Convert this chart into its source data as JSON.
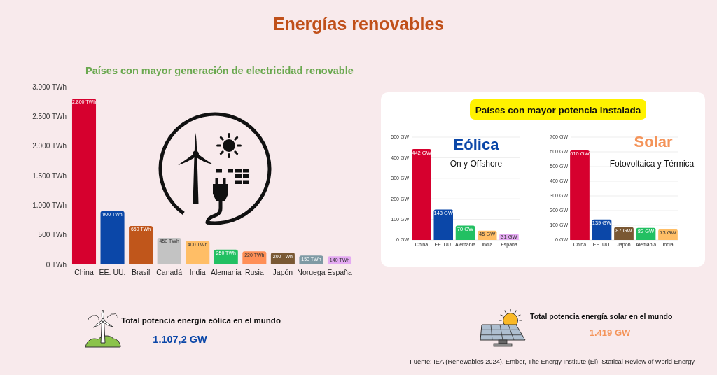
{
  "chart_data": [
    {
      "type": "other",
      "title": "Energías renovables",
      "annotations": [
        "Fuente: IEA (Renewables 2024), Ember, The Energy Institute (Ei), Statical Review of World Energy"
      ]
    },
    {
      "type": "bar",
      "title": "Países con mayor generación de electricidad renovable",
      "categories": [
        "China",
        "EE. UU.",
        "Brasil",
        "Canadá",
        "India",
        "Alemania",
        "Rusia",
        "Japón",
        "Noruega",
        "España"
      ],
      "values": [
        2800,
        900,
        650,
        450,
        400,
        250,
        220,
        200,
        150,
        140
      ],
      "colors": [
        "#d6002e",
        "#0b47a8",
        "#c0561b",
        "#c3c3c3",
        "#ffbe66",
        "#22c062",
        "#ff8f57",
        "#7a5833",
        "#7f9aa4",
        "#e4aaf2"
      ],
      "value_labels": [
        "2.800 TWh",
        "900 TWh",
        "650 TWh",
        "450 TWh",
        "400 TWh",
        "250 TWh",
        "220 TWh",
        "200 TWh",
        "150 TWh",
        "140 TWh"
      ],
      "ylim": [
        0,
        3000
      ],
      "yticks": [
        {
          "value": 0,
          "label": "0 TWh"
        },
        {
          "value": 500,
          "label": "500 TWh"
        },
        {
          "value": 1000,
          "label": "1.000 TWh"
        },
        {
          "value": 1500,
          "label": "1.500 TWh"
        },
        {
          "value": 2000,
          "label": "2.000 TWh"
        },
        {
          "value": 2500,
          "label": "2.500 TWh"
        },
        {
          "value": 3000,
          "label": "3.000 TWh"
        }
      ]
    },
    {
      "type": "other",
      "title": "Países con mayor potencia instalada"
    },
    {
      "type": "bar",
      "title": "Eólica",
      "subtitle": "On y Offshore",
      "categories": [
        "China",
        "EE. UU.",
        "Alemania",
        "India",
        "España"
      ],
      "values": [
        442,
        148,
        70,
        45,
        31
      ],
      "colors": [
        "#d6002e",
        "#0b47a8",
        "#22c062",
        "#ffbe66",
        "#e4aaf2"
      ],
      "value_labels": [
        "442 GW",
        "148 GW",
        "70 GW",
        "45 GW",
        "31 GW"
      ],
      "ylim": [
        0,
        500
      ],
      "yticks": [
        {
          "value": 0,
          "label": "0 GW"
        },
        {
          "value": 100,
          "label": "100 GW"
        },
        {
          "value": 200,
          "label": "200 GW"
        },
        {
          "value": 300,
          "label": "300 GW"
        },
        {
          "value": 400,
          "label": "400 GW"
        },
        {
          "value": 500,
          "label": "500 GW"
        }
      ],
      "grid": "y"
    },
    {
      "type": "bar",
      "title": "Solar",
      "subtitle": "Fotovoltaica y Térmica",
      "categories": [
        "China",
        "EE. UU.",
        "Japón",
        "Alemania",
        "India"
      ],
      "values": [
        610,
        139,
        87,
        82,
        73
      ],
      "colors": [
        "#d6002e",
        "#0b47a8",
        "#7a5833",
        "#22c062",
        "#ffbe66"
      ],
      "value_labels": [
        "610 GW",
        "139 GW",
        "87 GW",
        "82 GW",
        "73 GW"
      ],
      "ylim": [
        0,
        700
      ],
      "yticks": [
        {
          "value": 0,
          "label": "0 GW"
        },
        {
          "value": 100,
          "label": "100 GW"
        },
        {
          "value": 200,
          "label": "200 GW"
        },
        {
          "value": 300,
          "label": "300 GW"
        },
        {
          "value": 400,
          "label": "400 GW"
        },
        {
          "value": 500,
          "label": "500 GW"
        },
        {
          "value": 600,
          "label": "600 GW"
        },
        {
          "value": 700,
          "label": "700 GW"
        }
      ],
      "grid": "y"
    },
    {
      "type": "other",
      "title": "Total potencia energía eólica en el mundo",
      "annotations": [
        "1.107,2 GW"
      ]
    },
    {
      "type": "other",
      "title": "Total potencia energía solar en el mundo",
      "annotations": [
        "1.419 GW"
      ]
    }
  ]
}
